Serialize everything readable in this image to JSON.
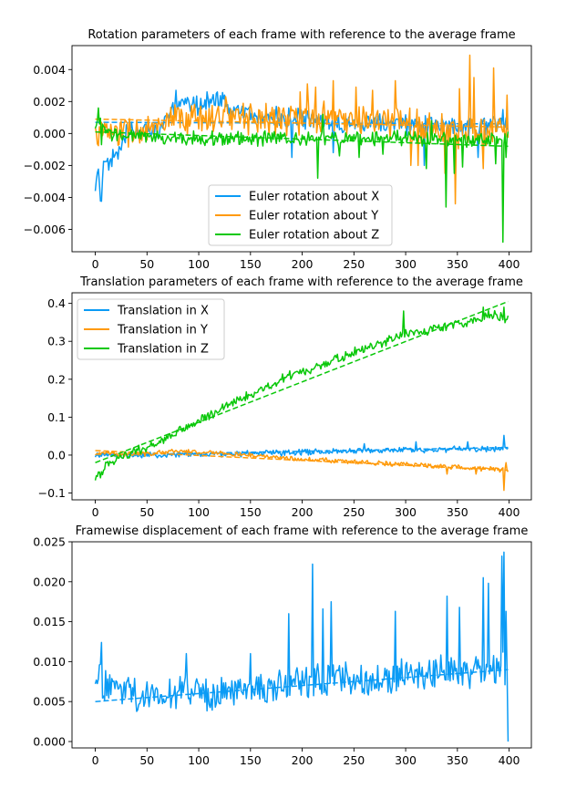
{
  "chart_data": [
    {
      "type": "line",
      "title": "Rotation parameters of each frame with reference to the average frame",
      "xlim": [
        -22.5,
        421.5
      ],
      "ylim": [
        -0.0074,
        0.0055
      ],
      "xticks": [
        0,
        50,
        100,
        150,
        200,
        250,
        300,
        350,
        400
      ],
      "xtick_labels": [
        "0",
        "50",
        "100",
        "150",
        "200",
        "250",
        "300",
        "350",
        "400"
      ],
      "yticks": [
        -0.006,
        -0.004,
        -0.002,
        0.0,
        0.002,
        0.004
      ],
      "ytick_labels": [
        "−0.006",
        "−0.004",
        "−0.002",
        "0.000",
        "0.002",
        "0.004"
      ],
      "grid": false,
      "legend": "lower-center",
      "series": [
        {
          "name": "Euler rotation about X",
          "color": "#0a9bf5",
          "keypoints": [
            [
              0,
              -0.0039
            ],
            [
              3,
              -0.002
            ],
            [
              5,
              -0.0045
            ],
            [
              8,
              -0.0022
            ],
            [
              14,
              -0.002
            ],
            [
              20,
              -0.0012
            ],
            [
              30,
              0.0
            ],
            [
              45,
              0.0002
            ],
            [
              60,
              0.0003
            ],
            [
              75,
              0.0015
            ],
            [
              90,
              0.0018
            ],
            [
              100,
              0.0018
            ],
            [
              110,
              0.002
            ],
            [
              120,
              0.0022
            ],
            [
              130,
              0.0015
            ],
            [
              145,
              0.0012
            ],
            [
              160,
              0.0011
            ],
            [
              180,
              0.001
            ],
            [
              200,
              0.0008
            ],
            [
              220,
              0.0008
            ],
            [
              240,
              0.0007
            ],
            [
              260,
              0.0007
            ],
            [
              280,
              0.0006
            ],
            [
              300,
              0.0006
            ],
            [
              320,
              0.0005
            ],
            [
              340,
              0.0005
            ],
            [
              360,
              0.0005
            ],
            [
              380,
              0.0006
            ],
            [
              399,
              0.0005
            ]
          ],
          "noise": 0.0005,
          "trend": [
            [
              0,
              0.0007
            ],
            [
              399,
              0.0006
            ]
          ],
          "spikes": [
            [
              22,
              -0.0016
            ],
            [
              78,
              0.0027
            ],
            [
              108,
              0.0026
            ],
            [
              118,
              0.0026
            ],
            [
              125,
              0.0024
            ],
            [
              190,
              -0.0015
            ],
            [
              230,
              -0.0012
            ],
            [
              318,
              -0.002
            ],
            [
              370,
              -0.0015
            ],
            [
              394,
              0.0015
            ]
          ]
        },
        {
          "name": "Euler rotation about Y",
          "color": "#ff9a0a",
          "keypoints": [
            [
              0,
              0.0
            ],
            [
              20,
              0.0001
            ],
            [
              40,
              0.0001
            ],
            [
              60,
              0.0003
            ],
            [
              80,
              0.0008
            ],
            [
              100,
              0.001
            ],
            [
              120,
              0.0012
            ],
            [
              140,
              0.0011
            ],
            [
              160,
              0.001
            ],
            [
              180,
              0.001
            ],
            [
              200,
              0.0009
            ],
            [
              220,
              0.0009
            ],
            [
              240,
              0.0008
            ],
            [
              260,
              0.0008
            ],
            [
              280,
              0.0008
            ],
            [
              300,
              0.0006
            ],
            [
              320,
              0.0004
            ],
            [
              340,
              0.0002
            ],
            [
              360,
              0.0002
            ],
            [
              380,
              0.0002
            ],
            [
              399,
              0.0003
            ]
          ],
          "noise": 0.0008,
          "trend": [
            [
              0,
              0.0009
            ],
            [
              399,
              0.0004
            ]
          ],
          "spikes": [
            [
              198,
              0.0026
            ],
            [
              205,
              0.0031
            ],
            [
              213,
              0.0029
            ],
            [
              230,
              0.0033
            ],
            [
              252,
              0.0029
            ],
            [
              268,
              0.0027
            ],
            [
              290,
              0.0033
            ],
            [
              305,
              -0.002
            ],
            [
              312,
              -0.002
            ],
            [
              338,
              -0.0025
            ],
            [
              348,
              -0.0044
            ],
            [
              352,
              0.0028
            ],
            [
              362,
              0.0049
            ],
            [
              366,
              0.0035
            ],
            [
              375,
              -0.0022
            ],
            [
              385,
              0.0041
            ],
            [
              398,
              0.0024
            ]
          ]
        },
        {
          "name": "Euler rotation about Z",
          "color": "#0ac80a",
          "keypoints": [
            [
              0,
              0.0002
            ],
            [
              5,
              0.0008
            ],
            [
              10,
              0.0
            ],
            [
              30,
              -0.0001
            ],
            [
              60,
              -0.0003
            ],
            [
              90,
              -0.0003
            ],
            [
              120,
              -0.0003
            ],
            [
              150,
              -0.0003
            ],
            [
              180,
              -0.0003
            ],
            [
              210,
              -0.0003
            ],
            [
              240,
              -0.0003
            ],
            [
              270,
              -0.0003
            ],
            [
              300,
              -0.0003
            ],
            [
              330,
              -0.0004
            ],
            [
              360,
              -0.0004
            ],
            [
              390,
              -0.0004
            ],
            [
              399,
              -0.0002
            ]
          ],
          "noise": 0.00035,
          "trend": [
            [
              0,
              0.0001
            ],
            [
              399,
              -0.0008
            ]
          ],
          "spikes": [
            [
              3,
              0.0016
            ],
            [
              6,
              -0.0007
            ],
            [
              215,
              -0.0028
            ],
            [
              220,
              0.0012
            ],
            [
              236,
              -0.0014
            ],
            [
              255,
              -0.0015
            ],
            [
              278,
              -0.0013
            ],
            [
              320,
              -0.0022
            ],
            [
              325,
              0.0008
            ],
            [
              339,
              -0.0046
            ],
            [
              347,
              -0.0025
            ],
            [
              355,
              -0.0021
            ],
            [
              387,
              -0.0019
            ],
            [
              394,
              -0.0068
            ],
            [
              397,
              -0.0015
            ]
          ]
        }
      ]
    },
    {
      "type": "line",
      "title": "Translation parameters of each frame with reference to the average frame",
      "xlim": [
        -22.5,
        421.5
      ],
      "ylim": [
        -0.118,
        0.428
      ],
      "xticks": [
        0,
        50,
        100,
        150,
        200,
        250,
        300,
        350,
        400
      ],
      "xtick_labels": [
        "0",
        "50",
        "100",
        "150",
        "200",
        "250",
        "300",
        "350",
        "400"
      ],
      "yticks": [
        -0.1,
        0.0,
        0.1,
        0.2,
        0.3,
        0.4
      ],
      "ytick_labels": [
        "−0.1",
        "0.0",
        "0.1",
        "0.2",
        "0.3",
        "0.4"
      ],
      "grid": false,
      "legend": "upper-left",
      "series": [
        {
          "name": "Translation in X",
          "color": "#0a9bf5",
          "keypoints": [
            [
              0,
              0.0
            ],
            [
              50,
              0.0
            ],
            [
              100,
              0.002
            ],
            [
              150,
              0.004
            ],
            [
              200,
              0.008
            ],
            [
              250,
              0.012
            ],
            [
              300,
              0.014
            ],
            [
              350,
              0.016
            ],
            [
              399,
              0.015
            ]
          ],
          "noise": 0.006,
          "trend": [
            [
              0,
              0.0
            ],
            [
              399,
              0.02
            ]
          ],
          "spikes": [
            [
              395,
              0.052
            ],
            [
              360,
              0.035
            ],
            [
              310,
              0.035
            ],
            [
              260,
              0.03
            ]
          ]
        },
        {
          "name": "Translation in Y",
          "color": "#ff9a0a",
          "keypoints": [
            [
              0,
              0.005
            ],
            [
              25,
              0.003
            ],
            [
              50,
              0.003
            ],
            [
              80,
              0.012
            ],
            [
              100,
              0.008
            ],
            [
              150,
              0.0
            ],
            [
              200,
              -0.01
            ],
            [
              250,
              -0.018
            ],
            [
              300,
              -0.025
            ],
            [
              350,
              -0.032
            ],
            [
              399,
              -0.04
            ]
          ],
          "noise": 0.005,
          "trend": [
            [
              0,
              0.012
            ],
            [
              399,
              -0.04
            ]
          ],
          "spikes": [
            [
              395,
              -0.093
            ],
            [
              397,
              -0.02
            ],
            [
              368,
              -0.05
            ],
            [
              340,
              -0.05
            ]
          ]
        },
        {
          "name": "Translation in Z",
          "color": "#0ac80a",
          "keypoints": [
            [
              0,
              -0.055
            ],
            [
              5,
              -0.05
            ],
            [
              10,
              -0.03
            ],
            [
              20,
              -0.01
            ],
            [
              40,
              0.01
            ],
            [
              60,
              0.03
            ],
            [
              80,
              0.06
            ],
            [
              100,
              0.09
            ],
            [
              120,
              0.12
            ],
            [
              140,
              0.15
            ],
            [
              160,
              0.17
            ],
            [
              180,
              0.2
            ],
            [
              200,
              0.22
            ],
            [
              220,
              0.24
            ],
            [
              240,
              0.26
            ],
            [
              260,
              0.28
            ],
            [
              280,
              0.3
            ],
            [
              300,
              0.32
            ],
            [
              320,
              0.33
            ],
            [
              340,
              0.34
            ],
            [
              360,
              0.35
            ],
            [
              380,
              0.37
            ],
            [
              399,
              0.36
            ]
          ],
          "noise": 0.01,
          "trend": [
            [
              0,
              -0.02
            ],
            [
              399,
              0.405
            ]
          ],
          "spikes": [
            [
              5,
              -0.06
            ],
            [
              298,
              0.38
            ],
            [
              375,
              0.39
            ],
            [
              395,
              0.39
            ]
          ]
        }
      ]
    },
    {
      "type": "line",
      "title": "Framewise displacement of each frame with reference to the average frame",
      "xlim": [
        -22.5,
        421.5
      ],
      "ylim": [
        -0.0008,
        0.025
      ],
      "xticks": [
        0,
        50,
        100,
        150,
        200,
        250,
        300,
        350,
        400
      ],
      "xtick_labels": [
        "0",
        "50",
        "100",
        "150",
        "200",
        "250",
        "300",
        "350",
        "400"
      ],
      "yticks": [
        0.0,
        0.005,
        0.01,
        0.015,
        0.02,
        0.025
      ],
      "ytick_labels": [
        "0.000",
        "0.005",
        "0.010",
        "0.015",
        "0.020",
        "0.025"
      ],
      "grid": false,
      "legend": "none",
      "series": [
        {
          "name": "",
          "color": "#0a9bf5",
          "keypoints": [
            [
              0,
              0.008
            ],
            [
              50,
              0.0055
            ],
            [
              100,
              0.006
            ],
            [
              150,
              0.0065
            ],
            [
              200,
              0.0075
            ],
            [
              250,
              0.0075
            ],
            [
              300,
              0.008
            ],
            [
              350,
              0.0085
            ],
            [
              399,
              0.009
            ]
          ],
          "noise": 0.0018,
          "trend": [
            [
              0,
              0.005
            ],
            [
              399,
              0.009
            ]
          ],
          "spikes": [
            [
              1,
              0.0077
            ],
            [
              6,
              0.0124
            ],
            [
              88,
              0.011
            ],
            [
              150,
              0.011
            ],
            [
              187,
              0.016
            ],
            [
              210,
              0.0222
            ],
            [
              220,
              0.0166
            ],
            [
              228,
              0.0175
            ],
            [
              290,
              0.0163
            ],
            [
              340,
              0.0182
            ],
            [
              352,
              0.0168
            ],
            [
              375,
              0.0205
            ],
            [
              380,
              0.0198
            ],
            [
              393,
              0.0232
            ],
            [
              395,
              0.0237
            ],
            [
              397,
              0.0163
            ],
            [
              399,
              0.0
            ]
          ]
        }
      ]
    }
  ]
}
